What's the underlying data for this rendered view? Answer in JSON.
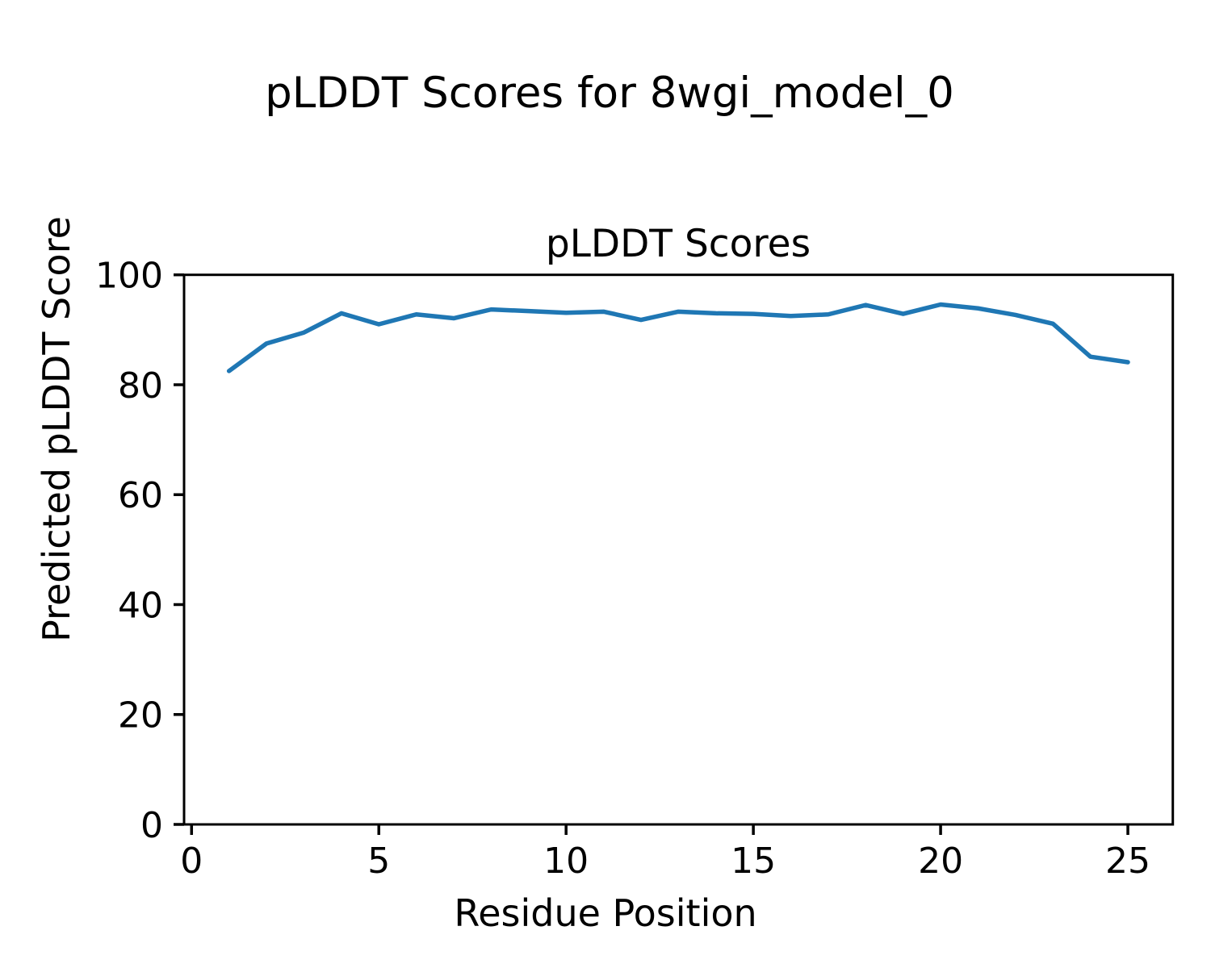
{
  "figure": {
    "suptitle": "pLDDT Scores for 8wgi_model_0",
    "background_color": "#ffffff",
    "text_color": "#000000"
  },
  "chart_data": {
    "type": "line",
    "title": "pLDDT Scores",
    "xlabel": "Residue Position",
    "ylabel": "Predicted pLDDT Score",
    "grid": false,
    "legend": "none",
    "xlim": [
      -0.2,
      26.2
    ],
    "ylim": [
      0,
      100
    ],
    "xticks": [
      0,
      5,
      10,
      15,
      20,
      25
    ],
    "yticks": [
      0,
      20,
      40,
      60,
      80,
      100
    ],
    "series": [
      {
        "name": "pLDDT",
        "color": "#1f77b4",
        "line_width": 5.5,
        "x": [
          1,
          2,
          3,
          4,
          5,
          6,
          7,
          8,
          9,
          10,
          11,
          12,
          13,
          14,
          15,
          16,
          17,
          18,
          19,
          20,
          21,
          22,
          23,
          24,
          25
        ],
        "y": [
          82.5,
          87.5,
          89.5,
          93.0,
          91.0,
          92.8,
          92.1,
          93.7,
          93.4,
          93.1,
          93.3,
          91.8,
          93.3,
          93.0,
          92.9,
          92.5,
          92.8,
          94.5,
          92.9,
          94.6,
          93.9,
          92.7,
          91.1,
          85.1,
          84.1
        ]
      }
    ],
    "spine_color": "#000000",
    "tick_color": "#000000"
  }
}
